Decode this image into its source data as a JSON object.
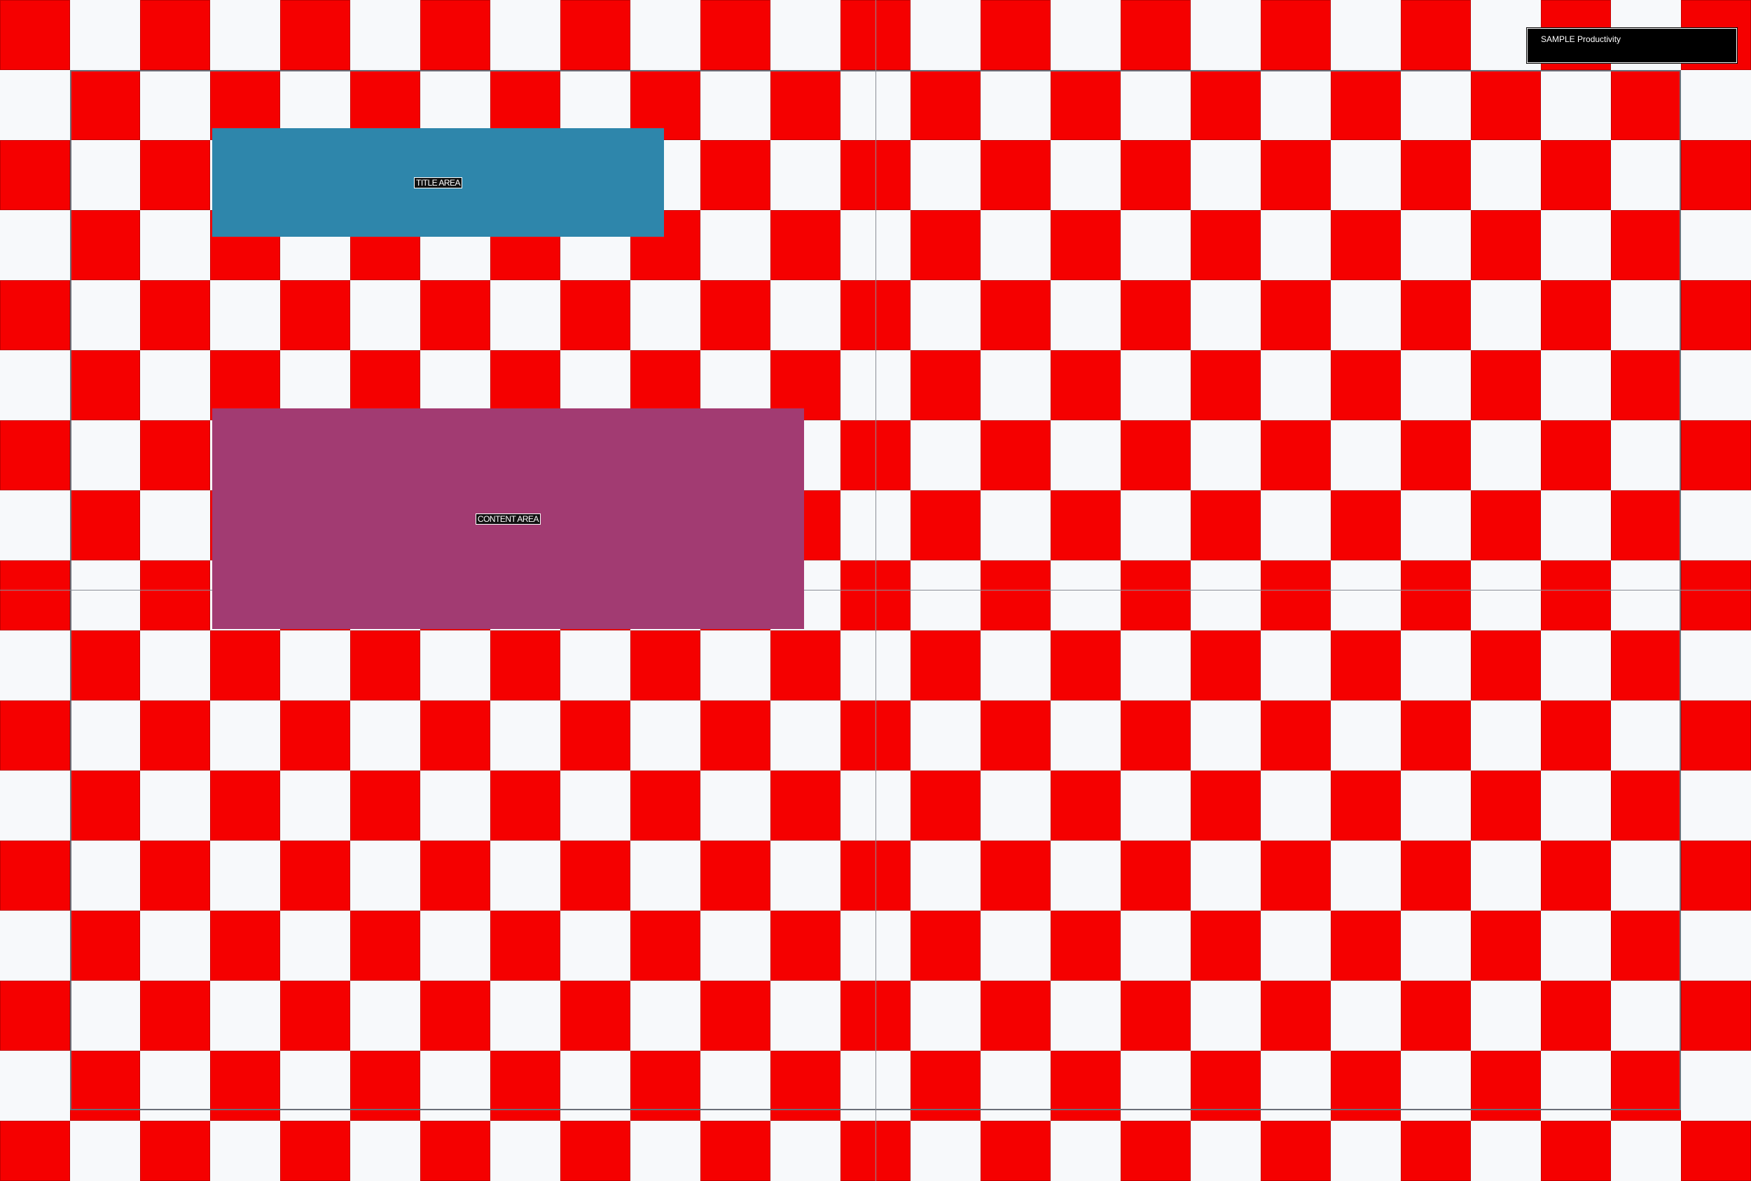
{
  "title_area": {
    "label": "TITLE AREA",
    "color": "#2e86ab"
  },
  "content_area": {
    "label": "CONTENT AREA",
    "color": "#a23b72"
  },
  "badge": {
    "text": "SAMPLE Productivity"
  },
  "squares": {
    "color": "#f50000"
  }
}
